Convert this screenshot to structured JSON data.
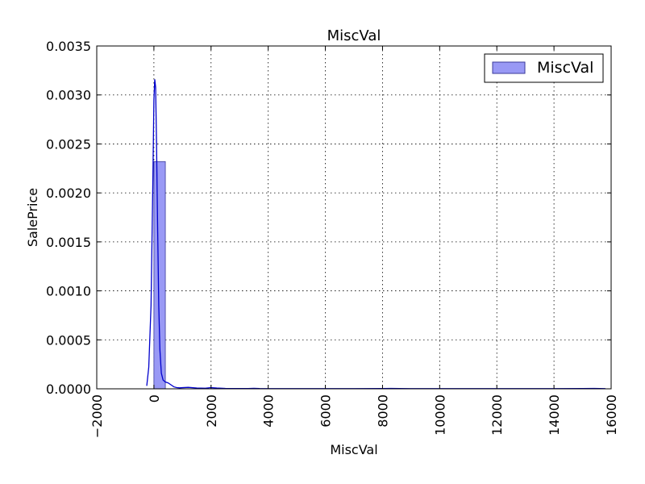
{
  "chart_data": {
    "type": "bar",
    "title": "MiscVal",
    "xlabel": "MiscVal",
    "ylabel": "SalePrice",
    "xlim": [
      -2000,
      16000
    ],
    "ylim": [
      0,
      0.0035
    ],
    "xticks": [
      -2000,
      0,
      2000,
      4000,
      6000,
      8000,
      10000,
      12000,
      14000,
      16000
    ],
    "xtick_labels": [
      "−2000",
      "0",
      "2000",
      "4000",
      "6000",
      "8000",
      "10000",
      "12000",
      "14000",
      "16000"
    ],
    "yticks": [
      0,
      0.0005,
      0.001,
      0.0015,
      0.002,
      0.0025,
      0.003,
      0.0035
    ],
    "ytick_labels": [
      "0.0000",
      "0.0005",
      "0.0010",
      "0.0015",
      "0.0020",
      "0.0025",
      "0.0030",
      "0.0035"
    ],
    "grid": true,
    "legend": {
      "placement": "top-right",
      "entries": [
        "MiscVal"
      ]
    },
    "series": [
      {
        "kind": "histogram",
        "name": "MiscVal",
        "bins": [
          {
            "x0": 0,
            "x1": 400,
            "y": 0.00232
          }
        ],
        "color": "#9999f5",
        "edge_color": "#3a3a9a"
      },
      {
        "kind": "kde",
        "color": "#0000cc",
        "x": [
          -250,
          -180,
          -100,
          -40,
          0,
          30,
          60,
          90,
          130,
          170,
          210,
          260,
          320,
          400,
          500,
          600,
          700,
          800,
          900,
          1000,
          1200,
          1500,
          1800,
          2000,
          2200,
          2500,
          3000,
          3300,
          3500,
          3700,
          4000,
          5000,
          6000,
          7000,
          8000,
          8300,
          8600,
          9000,
          10000,
          12000,
          14000,
          15000,
          15400,
          15600,
          15800
        ],
        "y": [
          3e-05,
          0.00022,
          0.00085,
          0.00205,
          0.00295,
          0.00316,
          0.00308,
          0.00255,
          0.00165,
          0.00085,
          0.0004,
          0.00016,
          9e-05,
          7e-05,
          6e-05,
          4e-05,
          2e-05,
          1.2e-05,
          1e-05,
          1.2e-05,
          1.5e-05,
          8e-06,
          6e-06,
          1.2e-05,
          8e-06,
          4e-06,
          3e-06,
          3e-06,
          5e-06,
          3e-06,
          2e-06,
          2e-06,
          2e-06,
          2e-06,
          3e-06,
          4e-06,
          3e-06,
          2e-06,
          2e-06,
          2e-06,
          2e-06,
          3e-06,
          4e-06,
          3e-06,
          2e-06
        ]
      }
    ]
  }
}
